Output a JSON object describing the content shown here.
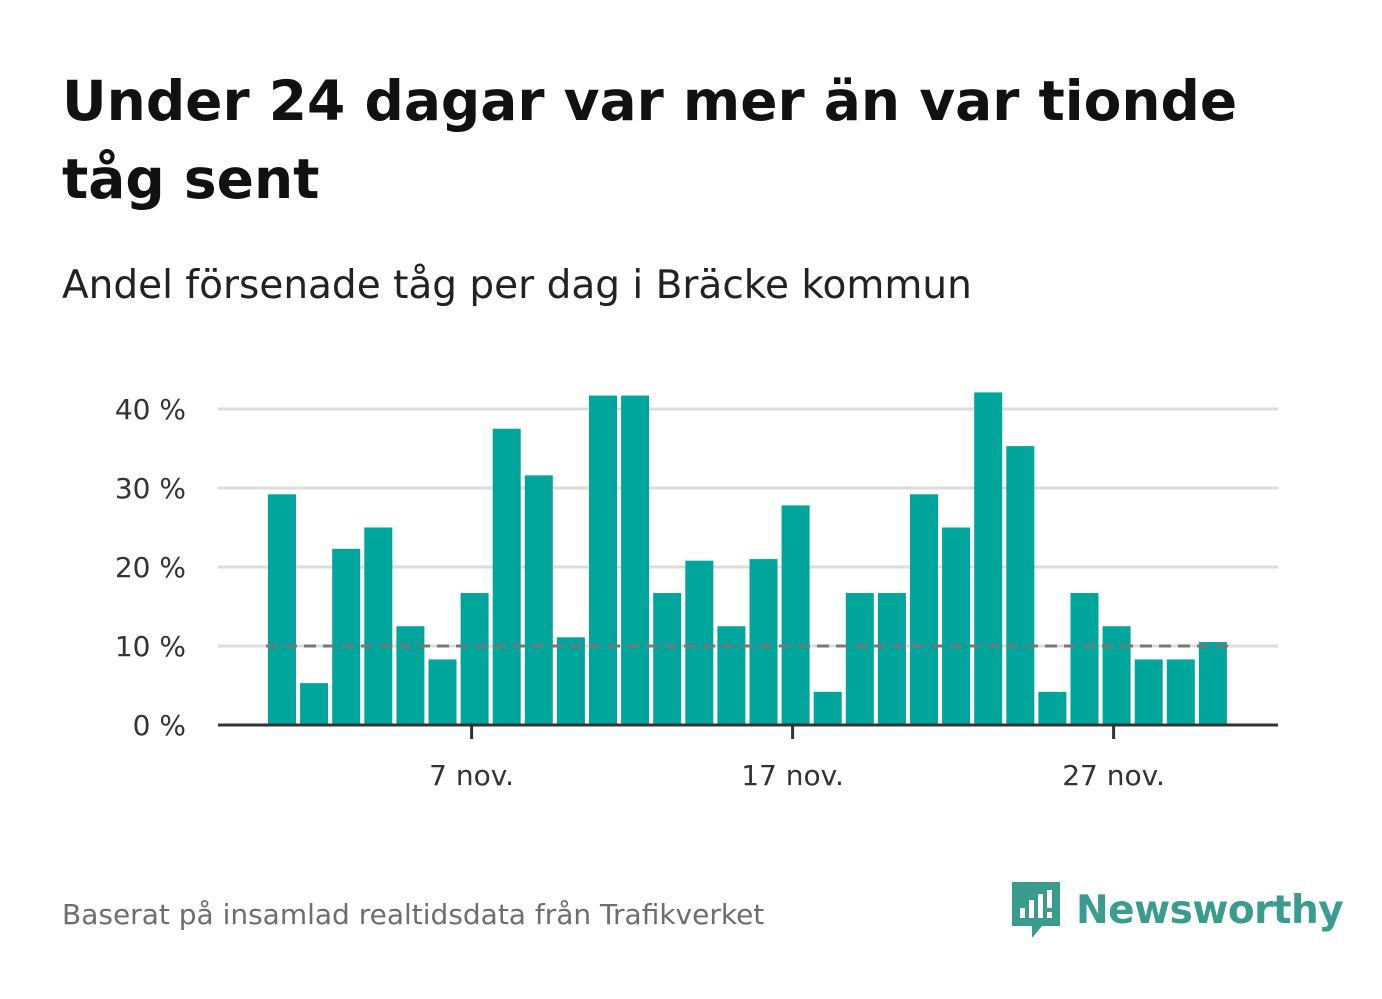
{
  "title": "Under 24 dagar var mer än var tionde tåg sent",
  "subtitle": "Andel försenade tåg per dag i Bräcke kommun",
  "footer": "Baserat på insamlad realtidsdata från Trafikverket",
  "brand": {
    "name": "Newsworthy",
    "icon": "newsworthy-logo-icon",
    "color": "#3a9c8f"
  },
  "colors": {
    "bar": "#00a59b",
    "grid": "#dddddd",
    "reference": "#777777",
    "axis": "#333333"
  },
  "chart_data": {
    "type": "bar",
    "x": [
      "1 nov.",
      "2 nov.",
      "3 nov.",
      "4 nov.",
      "5 nov.",
      "6 nov.",
      "7 nov.",
      "8 nov.",
      "9 nov.",
      "10 nov.",
      "11 nov.",
      "12 nov.",
      "13 nov.",
      "14 nov.",
      "15 nov.",
      "16 nov.",
      "17 nov.",
      "18 nov.",
      "19 nov.",
      "20 nov.",
      "21 nov.",
      "22 nov.",
      "23 nov.",
      "24 nov.",
      "25 nov.",
      "26 nov.",
      "27 nov.",
      "28 nov.",
      "29 nov.",
      "30 nov."
    ],
    "values": [
      29.2,
      5.3,
      22.3,
      25.0,
      12.5,
      8.3,
      16.7,
      37.5,
      31.6,
      11.1,
      41.7,
      41.7,
      16.7,
      20.8,
      12.5,
      21.0,
      27.8,
      4.2,
      16.7,
      16.7,
      29.2,
      25.0,
      42.1,
      35.3,
      4.2,
      16.7,
      12.5,
      8.3,
      8.3,
      10.5
    ],
    "x_ticks": [
      {
        "index": 6,
        "label": "7 nov."
      },
      {
        "index": 16,
        "label": "17 nov."
      },
      {
        "index": 26,
        "label": "27 nov."
      }
    ],
    "y_ticks": [
      {
        "value": 0,
        "label": "0 %"
      },
      {
        "value": 10,
        "label": "10 %"
      },
      {
        "value": 20,
        "label": "20 %"
      },
      {
        "value": 30,
        "label": "30 %"
      },
      {
        "value": 40,
        "label": "40 %"
      }
    ],
    "ylim": [
      0,
      45
    ],
    "reference_line": 10,
    "grid": true
  }
}
